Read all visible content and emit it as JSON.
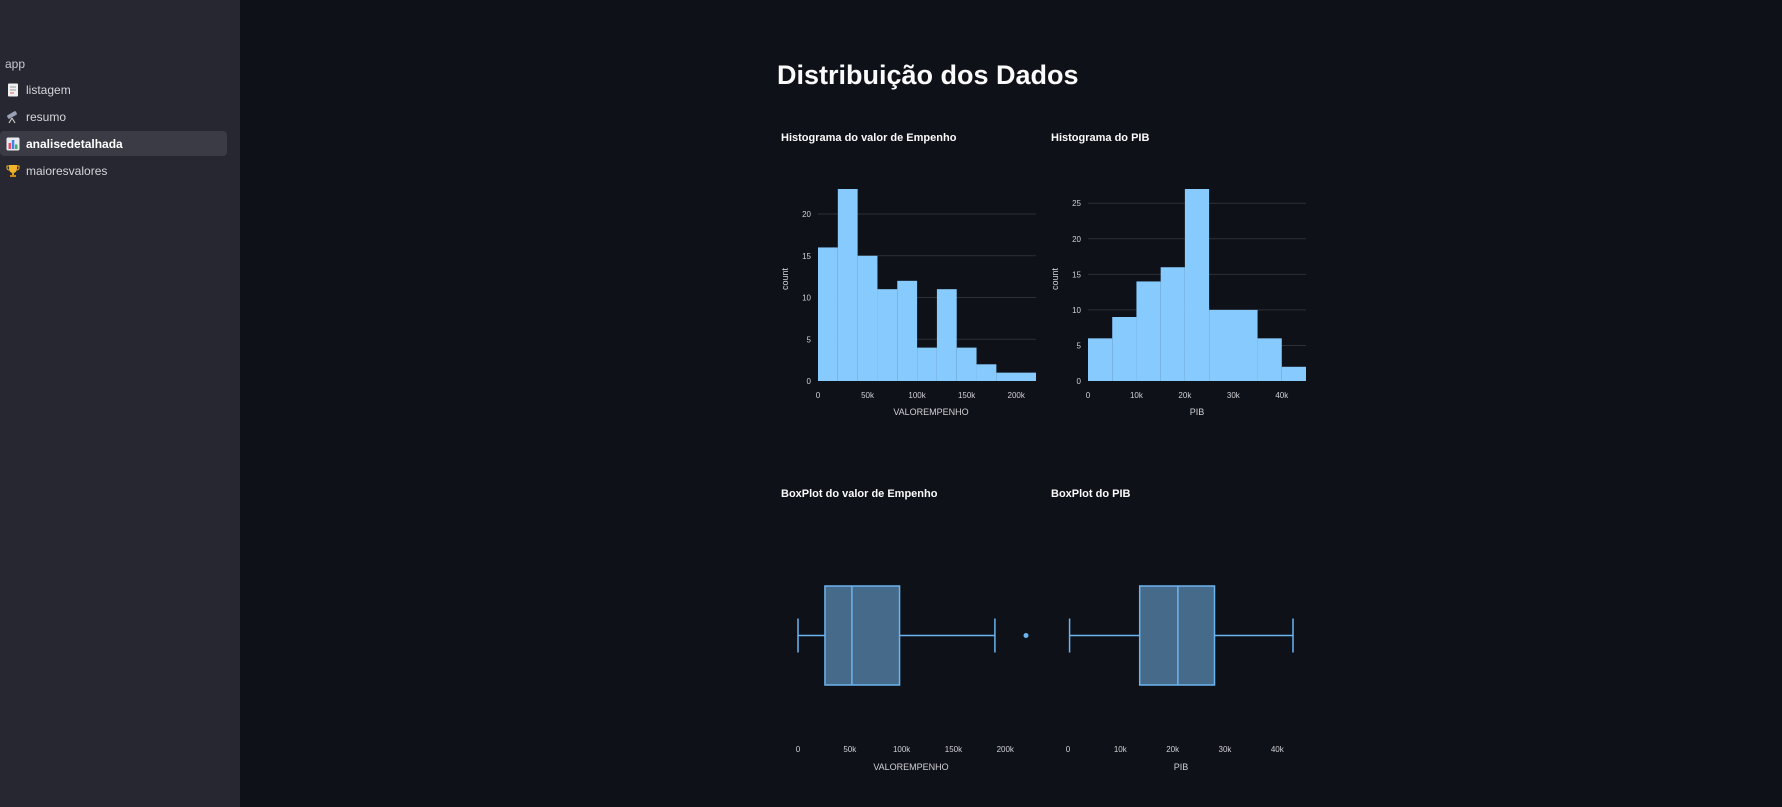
{
  "sidebar": {
    "header": "app",
    "items": [
      {
        "label": "listagem",
        "icon": "page-icon"
      },
      {
        "label": "resumo",
        "icon": "telescope-icon"
      },
      {
        "label": "analisedetalhada",
        "icon": "bar-chart-icon",
        "active": true
      },
      {
        "label": "maioresvalores",
        "icon": "trophy-icon"
      }
    ]
  },
  "main": {
    "title": "Distribuição dos Dados"
  },
  "colors": {
    "bar": "#87cafe",
    "box_fill": "#456a8a",
    "box_line": "#6cb4f0"
  },
  "chart_data": [
    {
      "type": "bar",
      "title": "Histograma do valor de Empenho",
      "xlabel": "VALOREMPENHO",
      "ylabel": "count",
      "xlim": [
        0,
        220000
      ],
      "ylim": [
        0,
        23
      ],
      "xticks": [
        0,
        50000,
        100000,
        150000,
        200000
      ],
      "xtick_labels": [
        "0",
        "50k",
        "100k",
        "150k",
        "200k"
      ],
      "yticks": [
        0,
        5,
        10,
        15,
        20
      ],
      "bin_width": 20000,
      "bins": [
        {
          "x0": 0,
          "x1": 20000,
          "count": 16
        },
        {
          "x0": 20000,
          "x1": 40000,
          "count": 23
        },
        {
          "x0": 40000,
          "x1": 60000,
          "count": 15
        },
        {
          "x0": 60000,
          "x1": 80000,
          "count": 11
        },
        {
          "x0": 80000,
          "x1": 100000,
          "count": 12
        },
        {
          "x0": 100000,
          "x1": 120000,
          "count": 4
        },
        {
          "x0": 120000,
          "x1": 140000,
          "count": 11
        },
        {
          "x0": 140000,
          "x1": 160000,
          "count": 4
        },
        {
          "x0": 160000,
          "x1": 180000,
          "count": 2
        },
        {
          "x0": 180000,
          "x1": 220000,
          "count": 1
        }
      ]
    },
    {
      "type": "bar",
      "title": "Histograma do PIB",
      "xlabel": "PIB",
      "ylabel": "count",
      "xlim": [
        0,
        45000
      ],
      "ylim": [
        0,
        27
      ],
      "xticks": [
        0,
        10000,
        20000,
        30000,
        40000
      ],
      "xtick_labels": [
        "0",
        "10k",
        "20k",
        "30k",
        "40k"
      ],
      "yticks": [
        0,
        5,
        10,
        15,
        20,
        25
      ],
      "bin_width": 5000,
      "bins": [
        {
          "x0": 0,
          "x1": 5000,
          "count": 6
        },
        {
          "x0": 5000,
          "x1": 10000,
          "count": 9
        },
        {
          "x0": 10000,
          "x1": 15000,
          "count": 14
        },
        {
          "x0": 15000,
          "x1": 20000,
          "count": 16
        },
        {
          "x0": 20000,
          "x1": 25000,
          "count": 27
        },
        {
          "x0": 25000,
          "x1": 35000,
          "count": 10
        },
        {
          "x0": 35000,
          "x1": 40000,
          "count": 6
        },
        {
          "x0": 40000,
          "x1": 45000,
          "count": 2
        }
      ]
    },
    {
      "type": "box",
      "title": "BoxPlot do valor de Empenho",
      "xlabel": "VALOREMPENHO",
      "xlim": [
        0,
        220000
      ],
      "xticks": [
        0,
        50000,
        100000,
        150000,
        200000
      ],
      "xtick_labels": [
        "0",
        "50k",
        "100k",
        "150k",
        "200k"
      ],
      "min": 0,
      "q1": 26000,
      "median": 52000,
      "q3": 98000,
      "max": 190000,
      "outliers": [
        220000
      ]
    },
    {
      "type": "box",
      "title": "BoxPlot do PIB",
      "xlabel": "PIB",
      "xlim": [
        0,
        43000
      ],
      "xticks": [
        0,
        10000,
        20000,
        30000,
        40000
      ],
      "xtick_labels": [
        "0",
        "10k",
        "20k",
        "30k",
        "40k"
      ],
      "min": 300,
      "q1": 13700,
      "median": 21000,
      "q3": 28000,
      "max": 43000,
      "outliers": []
    }
  ]
}
